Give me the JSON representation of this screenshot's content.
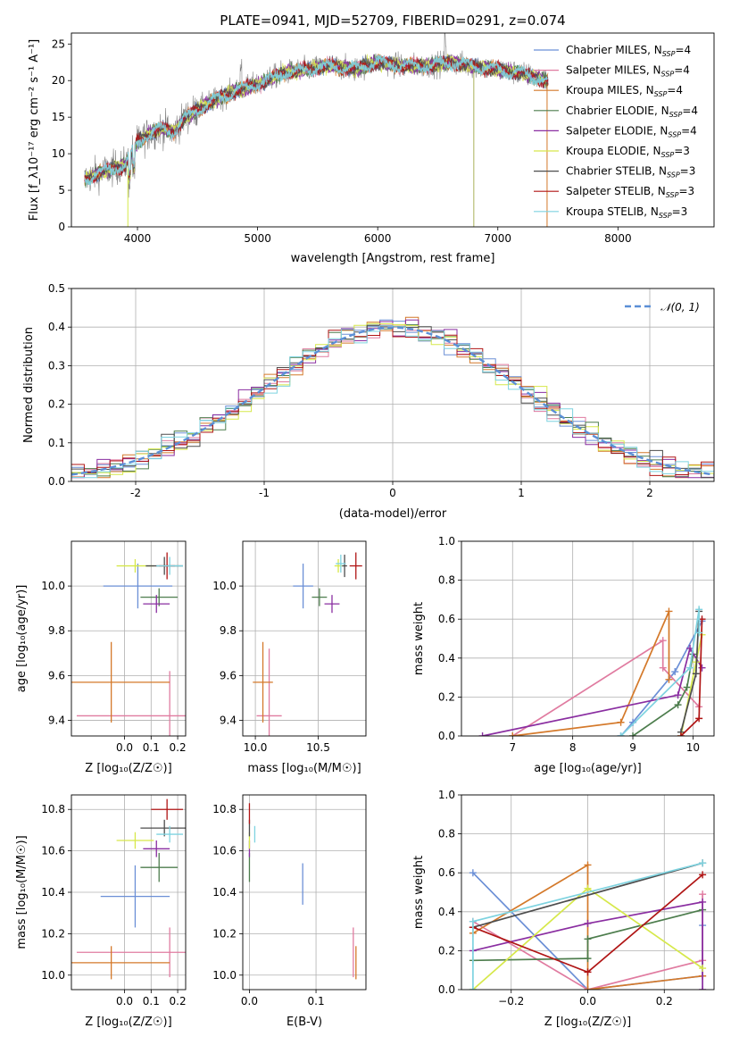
{
  "title": "PLATE=0941, MJD=52709, FIBERID=0291, z=0.074",
  "colors": {
    "chabrier_miles": "#6b8fd6",
    "salpeter_miles": "#e07ba0",
    "kroupa_miles": "#d4792a",
    "chabrier_elodie": "#4d7d4d",
    "salpeter_elodie": "#8a2ea1",
    "kroupa_elodie": "#d6e84a",
    "chabrier_stelib": "#4d4d4d",
    "salpeter_stelib": "#b01515",
    "kroupa_stelib": "#7ed3e0",
    "data_gray": "#7f7f7f",
    "normal_curve": "#5b8fd6",
    "grid": "#b0b0b0"
  },
  "chart_data": [
    {
      "id": "spectrum",
      "type": "line",
      "xlabel": "wavelength [Angstrom, rest frame]",
      "ylabel": "Flux [f_λ10⁻¹⁷ erg cm⁻² s⁻¹ A⁻¹]",
      "xlim": [
        3450,
        8800
      ],
      "ylim": [
        0,
        26.5
      ],
      "xticks": [
        4000,
        5000,
        6000,
        7000,
        8000
      ],
      "yticks": [
        0,
        5,
        10,
        15,
        20,
        25
      ],
      "grid": false,
      "legend_position": "right",
      "legend": [
        {
          "name": "Chabrier MILES, N",
          "sub": "SSP",
          "suffix": "=4",
          "color": "#6b8fd6"
        },
        {
          "name": "Salpeter MILES, N",
          "sub": "SSP",
          "suffix": "=4",
          "color": "#e07ba0"
        },
        {
          "name": "Kroupa MILES, N",
          "sub": "SSP",
          "suffix": "=4",
          "color": "#d4792a"
        },
        {
          "name": "Chabrier ELODIE, N",
          "sub": "SSP",
          "suffix": "=4",
          "color": "#4d7d4d"
        },
        {
          "name": "Salpeter ELODIE, N",
          "sub": "SSP",
          "suffix": "=4",
          "color": "#8a2ea1"
        },
        {
          "name": "Kroupa ELODIE, N",
          "sub": "SSP",
          "suffix": "=3",
          "color": "#d6e84a"
        },
        {
          "name": "Chabrier STELIB, N",
          "sub": "SSP",
          "suffix": "=3",
          "color": "#4d4d4d"
        },
        {
          "name": "Salpeter STELIB, N",
          "sub": "SSP",
          "suffix": "=3",
          "color": "#b01515"
        },
        {
          "name": "Kroupa STELIB, N",
          "sub": "SSP",
          "suffix": "=3",
          "color": "#7ed3e0"
        }
      ],
      "continuum_wavelength": [
        3560,
        3700,
        3900,
        4000,
        4100,
        4200,
        4300,
        4400,
        4500,
        4600,
        4800,
        5000,
        5200,
        5400,
        5600,
        5800,
        6000,
        6200,
        6400,
        6600,
        6800,
        7000,
        7200,
        7400
      ],
      "continuum_flux": [
        6.5,
        7.5,
        8.5,
        11.5,
        12.8,
        13.5,
        13.0,
        15.0,
        16.0,
        17.0,
        18.5,
        19.5,
        21.0,
        21.5,
        22.0,
        21.5,
        22.5,
        22.0,
        22.0,
        22.5,
        22.0,
        21.5,
        21.0,
        20.0
      ]
    },
    {
      "id": "residuals",
      "type": "step",
      "xlabel": "(data-model)/error",
      "ylabel": "Normed distribution",
      "xlim": [
        -2.5,
        2.5
      ],
      "ylim": [
        0,
        0.5
      ],
      "xticks": [
        -2,
        -1,
        0,
        1,
        2
      ],
      "ytick_values": [
        0.0,
        0.1,
        0.2,
        0.3,
        0.4,
        0.5
      ],
      "ytick_labels": [
        "0.0",
        "0.1",
        "0.2",
        "0.3",
        "0.4",
        "0.5"
      ],
      "grid": true,
      "legend_position": "top-right",
      "normal_label": "𝒩(0, 1)",
      "bin_width": 0.1
    },
    {
      "id": "age-vs-Z",
      "type": "scatter",
      "xlabel": "Z [log₁₀(Z/Z☉)]",
      "ylabel": "age  [log₁₀(age/yr)]",
      "xlim": [
        -0.2,
        0.23
      ],
      "ylim": [
        9.33,
        10.2
      ],
      "xticks": [
        0.0,
        0.1,
        0.2
      ],
      "xtick_labels": [
        "0.0",
        "0.1",
        "0.2"
      ],
      "yticks": [
        9.4,
        9.6,
        9.8,
        10.0
      ],
      "ytick_labels": [
        "9.4",
        "9.6",
        "9.8",
        "10.0"
      ],
      "grid": true,
      "points": [
        {
          "series": "Chabrier MILES",
          "x": 0.05,
          "y": 10.0,
          "xerr": 0.13,
          "yerr": 0.1
        },
        {
          "series": "Salpeter MILES",
          "x": 0.17,
          "y": 9.42,
          "xerr": 0.35,
          "yerr": 0.2
        },
        {
          "series": "Kroupa MILES",
          "x": -0.05,
          "y": 9.57,
          "xerr": 0.22,
          "yerr": 0.18
        },
        {
          "series": "Chabrier ELODIE",
          "x": 0.13,
          "y": 9.95,
          "xerr": 0.07,
          "yerr": 0.04
        },
        {
          "series": "Salpeter ELODIE",
          "x": 0.12,
          "y": 9.92,
          "xerr": 0.05,
          "yerr": 0.04
        },
        {
          "series": "Kroupa ELODIE",
          "x": 0.04,
          "y": 10.09,
          "xerr": 0.07,
          "yerr": 0.03
        },
        {
          "series": "Chabrier STELIB",
          "x": 0.15,
          "y": 10.09,
          "xerr": 0.07,
          "yerr": 0.04
        },
        {
          "series": "Salpeter STELIB",
          "x": 0.16,
          "y": 10.09,
          "xerr": 0.03,
          "yerr": 0.06
        },
        {
          "series": "Kroupa STELIB",
          "x": 0.17,
          "y": 10.09,
          "xerr": 0.05,
          "yerr": 0.04
        }
      ]
    },
    {
      "id": "age-vs-mass",
      "type": "scatter",
      "xlabel": "mass [log₁₀(M/M☉)]",
      "ylabel": "",
      "xlim": [
        9.9,
        10.88
      ],
      "ylim": [
        9.33,
        10.2
      ],
      "xticks": [
        10.0,
        10.5
      ],
      "xtick_labels": [
        "10.0",
        "10.5"
      ],
      "yticks": [
        9.4,
        9.6,
        9.8,
        10.0
      ],
      "ytick_labels": [
        "9.4",
        "9.6",
        "9.8",
        "10.0"
      ],
      "grid": true,
      "points": [
        {
          "series": "Chabrier MILES",
          "x": 10.38,
          "y": 10.0,
          "xerr": 0.08,
          "yerr": 0.1
        },
        {
          "series": "Salpeter MILES",
          "x": 10.11,
          "y": 9.42,
          "xerr": 0.1,
          "yerr": 0.3
        },
        {
          "series": "Kroupa MILES",
          "x": 10.06,
          "y": 9.57,
          "xerr": 0.08,
          "yerr": 0.18
        },
        {
          "series": "Chabrier ELODIE",
          "x": 10.51,
          "y": 9.95,
          "xerr": 0.06,
          "yerr": 0.04
        },
        {
          "series": "Salpeter ELODIE",
          "x": 10.61,
          "y": 9.92,
          "xerr": 0.06,
          "yerr": 0.04
        },
        {
          "series": "Kroupa ELODIE",
          "x": 10.66,
          "y": 10.09,
          "xerr": 0.03,
          "yerr": 0.03
        },
        {
          "series": "Chabrier STELIB",
          "x": 10.71,
          "y": 10.09,
          "xerr": 0.02,
          "yerr": 0.05
        },
        {
          "series": "Salpeter STELIB",
          "x": 10.8,
          "y": 10.09,
          "xerr": 0.05,
          "yerr": 0.06
        },
        {
          "series": "Kroupa STELIB",
          "x": 10.68,
          "y": 10.1,
          "xerr": 0.04,
          "yerr": 0.04
        }
      ]
    },
    {
      "id": "mass-weight-vs-age",
      "type": "line",
      "xlabel": "age  [log₁₀(age/yr)]",
      "ylabel": "mass weight",
      "xlim": [
        6.15,
        10.35
      ],
      "ylim": [
        0,
        1
      ],
      "xticks": [
        7,
        8,
        9,
        10
      ],
      "yticks": [
        0.0,
        0.2,
        0.4,
        0.6,
        0.8,
        1.0
      ],
      "ytick_labels": [
        "0.0",
        "0.2",
        "0.4",
        "0.6",
        "0.8",
        "1.0"
      ],
      "grid": true,
      "series": [
        {
          "name": "Chabrier MILES",
          "x": [
            8.8,
            9.0,
            9.7,
            10.15
          ],
          "y": [
            0.0,
            0.07,
            0.33,
            0.59
          ]
        },
        {
          "name": "Salpeter MILES",
          "x": [
            7.0,
            9.5,
            9.5,
            10.1
          ],
          "y": [
            0.0,
            0.49,
            0.35,
            0.15
          ]
        },
        {
          "name": "Kroupa MILES",
          "x": [
            7.0,
            8.8,
            9.6,
            9.6
          ],
          "y": [
            0.0,
            0.07,
            0.64,
            0.29
          ]
        },
        {
          "name": "Chabrier ELODIE",
          "x": [
            9.0,
            9.75,
            9.9,
            10.0
          ],
          "y": [
            0.0,
            0.16,
            0.25,
            0.42
          ]
        },
        {
          "name": "Salpeter ELODIE",
          "x": [
            6.5,
            9.75,
            9.95,
            10.15
          ],
          "y": [
            0.0,
            0.21,
            0.45,
            0.35
          ]
        },
        {
          "name": "Kroupa ELODIE",
          "x": [
            9.8,
            10.05,
            10.15
          ],
          "y": [
            0.0,
            0.38,
            0.52
          ]
        },
        {
          "name": "Chabrier STELIB",
          "x": [
            9.8,
            10.05,
            10.1
          ],
          "y": [
            0.02,
            0.32,
            0.64
          ]
        },
        {
          "name": "Salpeter STELIB",
          "x": [
            9.8,
            10.1,
            10.15
          ],
          "y": [
            0.0,
            0.09,
            0.6
          ]
        },
        {
          "name": "Kroupa STELIB",
          "x": [
            8.8,
            9.95,
            10.1,
            10.1
          ],
          "y": [
            0.0,
            0.35,
            0.65,
            0.53
          ]
        }
      ]
    },
    {
      "id": "mass-vs-Z",
      "type": "scatter",
      "xlabel": "Z [log₁₀(Z/Z☉)]",
      "ylabel": "mass [log₁₀(M/M☉)]",
      "xlim": [
        -0.2,
        0.23
      ],
      "ylim": [
        9.93,
        10.87
      ],
      "xticks": [
        0.0,
        0.1,
        0.2
      ],
      "xtick_labels": [
        "0.0",
        "0.1",
        "0.2"
      ],
      "yticks": [
        10.0,
        10.2,
        10.4,
        10.6,
        10.8
      ],
      "ytick_labels": [
        "10.0",
        "10.2",
        "10.4",
        "10.6",
        "10.8"
      ],
      "grid": true,
      "points": [
        {
          "series": "Chabrier MILES",
          "x": 0.04,
          "y": 10.38,
          "xerr": 0.13,
          "yerr": 0.15
        },
        {
          "series": "Salpeter MILES",
          "x": 0.17,
          "y": 10.11,
          "xerr": 0.35,
          "yerr": 0.12
        },
        {
          "series": "Kroupa MILES",
          "x": -0.05,
          "y": 10.06,
          "xerr": 0.22,
          "yerr": 0.08
        },
        {
          "series": "Chabrier ELODIE",
          "x": 0.13,
          "y": 10.52,
          "xerr": 0.07,
          "yerr": 0.07
        },
        {
          "series": "Salpeter ELODIE",
          "x": 0.12,
          "y": 10.61,
          "xerr": 0.05,
          "yerr": 0.04
        },
        {
          "series": "Kroupa ELODIE",
          "x": 0.04,
          "y": 10.65,
          "xerr": 0.07,
          "yerr": 0.04
        },
        {
          "series": "Chabrier STELIB",
          "x": 0.15,
          "y": 10.71,
          "xerr": 0.09,
          "yerr": 0.04
        },
        {
          "series": "Salpeter STELIB",
          "x": 0.16,
          "y": 10.8,
          "xerr": 0.06,
          "yerr": 0.05
        },
        {
          "series": "Kroupa STELIB",
          "x": 0.17,
          "y": 10.68,
          "xerr": 0.05,
          "yerr": 0.04
        }
      ]
    },
    {
      "id": "mass-vs-ebv",
      "type": "scatter",
      "xlabel": "E(B-V)",
      "ylabel": "",
      "xlim": [
        -0.01,
        0.175
      ],
      "ylim": [
        9.93,
        10.87
      ],
      "xticks": [
        0.0,
        0.1
      ],
      "xtick_labels": [
        "0.0",
        "0.1"
      ],
      "yticks": [
        10.0,
        10.2,
        10.4,
        10.6,
        10.8
      ],
      "ytick_labels": [
        "10.0",
        "10.2",
        "10.4",
        "10.6",
        "10.8"
      ],
      "grid": true,
      "points": [
        {
          "series": "Chabrier MILES",
          "x": 0.08,
          "y": 10.44,
          "xerr": 0,
          "yerr": 0.1
        },
        {
          "series": "Salpeter MILES",
          "x": 0.156,
          "y": 10.11,
          "xerr": 0,
          "yerr": 0.12
        },
        {
          "series": "Kroupa MILES",
          "x": 0.16,
          "y": 10.06,
          "xerr": 0,
          "yerr": 0.08
        },
        {
          "series": "Chabrier ELODIE",
          "x": 0.0,
          "y": 10.52,
          "xerr": 0,
          "yerr": 0.07
        },
        {
          "series": "Salpeter ELODIE",
          "x": 0.0,
          "y": 10.61,
          "xerr": 0,
          "yerr": 0.04
        },
        {
          "series": "Kroupa ELODIE",
          "x": 0.0,
          "y": 10.65,
          "xerr": 0,
          "yerr": 0.04
        },
        {
          "series": "Chabrier STELIB",
          "x": 0.0,
          "y": 10.71,
          "xerr": 0,
          "yerr": 0.04
        },
        {
          "series": "Salpeter STELIB",
          "x": 0.0,
          "y": 10.78,
          "xerr": 0,
          "yerr": 0.05
        },
        {
          "series": "Kroupa STELIB",
          "x": 0.008,
          "y": 10.68,
          "xerr": 0,
          "yerr": 0.04
        }
      ]
    },
    {
      "id": "mass-weight-vs-Z",
      "type": "line",
      "xlabel": "Z [log₁₀(Z/Z☉)]",
      "ylabel": "mass weight",
      "xlim": [
        -0.33,
        0.33
      ],
      "ylim": [
        0,
        1
      ],
      "xticks": [
        -0.2,
        0.0,
        0.2
      ],
      "xtick_labels": [
        "−0.2",
        "0.0",
        "0.2"
      ],
      "yticks": [
        0.0,
        0.2,
        0.4,
        0.6,
        0.8,
        1.0
      ],
      "ytick_labels": [
        "0.0",
        "0.2",
        "0.4",
        "0.6",
        "0.8",
        "1.0"
      ],
      "grid": true,
      "series": [
        {
          "name": "Chabrier MILES",
          "x": [
            -0.3,
            0.0,
            0.3,
            0.3
          ],
          "y": [
            0.6,
            0.0,
            0.07,
            0.33
          ]
        },
        {
          "name": "Salpeter MILES",
          "x": [
            -0.3,
            0.0,
            0.3,
            0.3
          ],
          "y": [
            0.35,
            0.0,
            0.15,
            0.49
          ]
        },
        {
          "name": "Kroupa MILES",
          "x": [
            -0.3,
            0.0,
            0.0,
            0.3
          ],
          "y": [
            0.29,
            0.64,
            0.0,
            0.07
          ]
        },
        {
          "name": "Chabrier ELODIE",
          "x": [
            -0.3,
            0.0,
            0.0,
            0.3
          ],
          "y": [
            0.15,
            0.16,
            0.26,
            0.41
          ]
        },
        {
          "name": "Salpeter ELODIE",
          "x": [
            -0.3,
            0.0,
            0.3,
            0.3
          ],
          "y": [
            0.2,
            0.34,
            0.45,
            0.0
          ]
        },
        {
          "name": "Kroupa ELODIE",
          "x": [
            -0.3,
            0.0,
            0.3
          ],
          "y": [
            0.0,
            0.52,
            0.11
          ]
        },
        {
          "name": "Chabrier STELIB",
          "x": [
            -0.3,
            0.3
          ],
          "y": [
            0.32,
            0.65
          ]
        },
        {
          "name": "Salpeter STELIB",
          "x": [
            -0.3,
            0.0,
            0.3
          ],
          "y": [
            0.32,
            0.09,
            0.59
          ]
        },
        {
          "name": "Kroupa STELIB",
          "x": [
            -0.3,
            -0.3,
            0.3
          ],
          "y": [
            0.0,
            0.35,
            0.65
          ]
        }
      ]
    }
  ]
}
